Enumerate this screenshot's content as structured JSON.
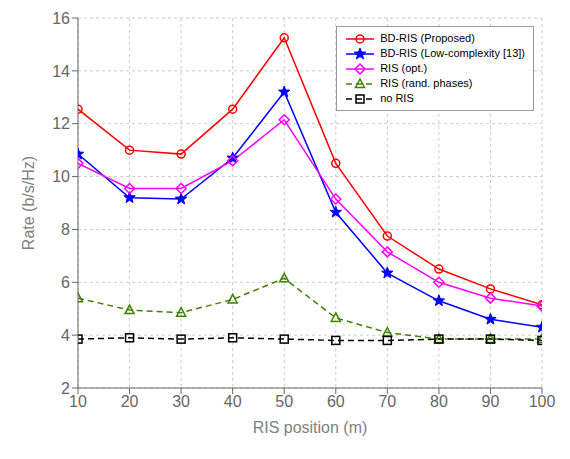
{
  "chart_data": {
    "type": "line",
    "x": [
      10,
      20,
      30,
      40,
      50,
      60,
      70,
      80,
      90,
      100
    ],
    "series": [
      {
        "name": "BD-RIS (Proposed)",
        "color": "#ff0000",
        "marker": "circle",
        "line_style": "solid",
        "values": [
          12.55,
          11.0,
          10.85,
          12.55,
          15.25,
          10.5,
          7.75,
          6.5,
          5.75,
          5.15
        ]
      },
      {
        "name": "BD-RIS (Low-complexity [13])",
        "color": "#0000ff",
        "marker": "star",
        "line_style": "solid",
        "values": [
          10.85,
          9.2,
          9.15,
          10.7,
          13.2,
          8.65,
          6.35,
          5.3,
          4.6,
          4.3
        ]
      },
      {
        "name": "RIS (opt.)",
        "color": "#ff00ff",
        "marker": "diamond",
        "line_style": "solid",
        "values": [
          10.5,
          9.55,
          9.55,
          10.6,
          12.15,
          9.15,
          7.15,
          6.0,
          5.4,
          5.1
        ]
      },
      {
        "name": "RIS (rand. phases)",
        "color": "#408000",
        "marker": "triangle",
        "line_style": "dashed",
        "values": [
          5.4,
          4.95,
          4.85,
          5.35,
          6.15,
          4.65,
          4.1,
          3.85,
          3.85,
          3.85
        ]
      },
      {
        "name": "no RIS",
        "color": "#000000",
        "marker": "square",
        "line_style": "dashed",
        "values": [
          3.85,
          3.9,
          3.85,
          3.9,
          3.85,
          3.8,
          3.8,
          3.85,
          3.85,
          3.8
        ]
      }
    ],
    "xlabel": "RIS position (m)",
    "ylabel": "Rate (b/s/Hz)",
    "xlim": [
      10,
      100
    ],
    "ylim": [
      2,
      16
    ],
    "xticks": [
      10,
      20,
      30,
      40,
      50,
      60,
      70,
      80,
      90,
      100
    ],
    "yticks": [
      2,
      4,
      6,
      8,
      10,
      12,
      14,
      16
    ],
    "grid": true,
    "legend": "upper right"
  }
}
